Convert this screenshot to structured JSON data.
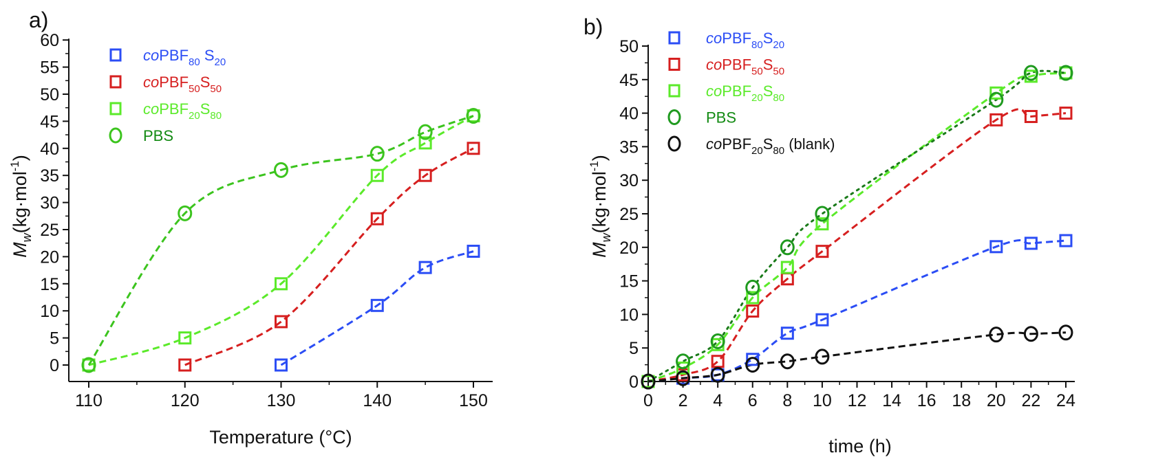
{
  "chart_data": [
    {
      "panel_label": "a)",
      "type": "scatter",
      "xlabel": "Temperature (°C)",
      "ylabel": {
        "main": "M",
        "sub": "w",
        "unit": "(kg·mol",
        "sup": "-1",
        "close": ")"
      },
      "xlim": [
        108,
        152
      ],
      "ylim": [
        0,
        60
      ],
      "xticks": [
        110,
        120,
        130,
        140,
        150
      ],
      "yticks": [
        0,
        5,
        10,
        15,
        20,
        25,
        30,
        35,
        40,
        45,
        50,
        55,
        60
      ],
      "legend_position": "top-left",
      "series": [
        {
          "name": {
            "italic": "co",
            "main": "PBF",
            "sub1": "80",
            "main2": " S",
            "sub2": "20",
            "suffix": ""
          },
          "marker": "square",
          "color": "#2b4df5",
          "text_color": "#2b4df5",
          "fit_color": "#2b4df5",
          "fit_style": "dashed",
          "x": [
            130,
            140,
            145,
            150
          ],
          "y": [
            0,
            11,
            18,
            21
          ]
        },
        {
          "name": {
            "italic": "co",
            "main": "PBF",
            "sub1": "50",
            "main2": "S",
            "sub2": "50",
            "suffix": ""
          },
          "marker": "square",
          "color": "#d61f1f",
          "text_color": "#d61f1f",
          "fit_color": "#d61f1f",
          "fit_style": "dashed",
          "x": [
            120,
            130,
            140,
            145,
            150
          ],
          "y": [
            0,
            8,
            27,
            35,
            40
          ]
        },
        {
          "name": {
            "italic": "co",
            "main": "PBF",
            "sub1": "20",
            "main2": "S",
            "sub2": "80",
            "suffix": ""
          },
          "marker": "square",
          "color": "#5bea2a",
          "text_color": "#5bea2a",
          "fit_color": "#5bea2a",
          "fit_style": "dashed",
          "x": [
            110,
            120,
            130,
            140,
            145,
            150
          ],
          "y": [
            0,
            5,
            15,
            35,
            41,
            46
          ]
        },
        {
          "name": {
            "italic": "",
            "main": "PBS",
            "sub1": "",
            "main2": "",
            "sub2": "",
            "suffix": ""
          },
          "marker": "circle",
          "color": "#3cc41e",
          "text_color": "#128a12",
          "fit_color": "#3cc41e",
          "fit_style": "dashed",
          "x": [
            110,
            120,
            130,
            140,
            145,
            150
          ],
          "y": [
            0,
            28,
            36,
            39,
            43,
            46
          ]
        }
      ]
    },
    {
      "panel_label": "b)",
      "type": "scatter",
      "xlabel": "time (h)",
      "ylabel": {
        "main": "M",
        "sub": "w",
        "unit": "(kg·mol",
        "sup": "-1",
        "close": ")"
      },
      "xlim": [
        0,
        24.5
      ],
      "ylim": [
        0,
        50
      ],
      "xticks": [
        0,
        2,
        4,
        6,
        8,
        10,
        12,
        14,
        16,
        18,
        20,
        22,
        24
      ],
      "yticks": [
        0,
        5,
        10,
        15,
        20,
        25,
        30,
        35,
        40,
        45,
        50
      ],
      "legend_position": "top-left",
      "series": [
        {
          "name": {
            "italic": "co",
            "main": "PBF",
            "sub1": "80",
            "main2": "S",
            "sub2": "20",
            "suffix": ""
          },
          "marker": "square",
          "color": "#2b4df5",
          "text_color": "#2b4df5",
          "fit_color": "#2b4df5",
          "fit_style": "dashed",
          "x": [
            0,
            2,
            4,
            6,
            8,
            10,
            20,
            22,
            24
          ],
          "y": [
            0,
            0.5,
            1,
            3.3,
            7.2,
            9.2,
            20.1,
            20.6,
            21
          ]
        },
        {
          "name": {
            "italic": "co",
            "main": "PBF",
            "sub1": "50",
            "main2": "S",
            "sub2": "50",
            "suffix": ""
          },
          "marker": "square",
          "color": "#d61f1f",
          "text_color": "#d61f1f",
          "fit_color": "#d61f1f",
          "fit_style": "dashed",
          "x": [
            0,
            2,
            4,
            6,
            8,
            10,
            20,
            22,
            24
          ],
          "y": [
            0,
            1,
            3,
            10.5,
            15.3,
            19.4,
            39,
            39.5,
            40
          ]
        },
        {
          "name": {
            "italic": "co",
            "main": "PBF",
            "sub1": "20",
            "main2": "S",
            "sub2": "80",
            "suffix": ""
          },
          "marker": "square",
          "color": "#5bea2a",
          "text_color": "#5bea2a",
          "fit_color": "#5bea2a",
          "fit_style": "dashed",
          "x": [
            0,
            2,
            4,
            6,
            8,
            10,
            20,
            22,
            24
          ],
          "y": [
            0,
            2,
            5.5,
            12.5,
            17,
            23.5,
            43,
            45.5,
            46
          ]
        },
        {
          "name": {
            "italic": "",
            "main": "PBS",
            "sub1": "",
            "main2": "",
            "sub2": "",
            "suffix": ""
          },
          "marker": "circle",
          "color": "#1f9a1f",
          "text_color": "#128a12",
          "fit_color": "#1a7a1a",
          "fit_style": "dotted",
          "x": [
            0,
            2,
            4,
            6,
            8,
            10,
            20,
            22,
            24
          ],
          "y": [
            0,
            3,
            6,
            14,
            20,
            25,
            42,
            46,
            46
          ]
        },
        {
          "name": {
            "italic": "co",
            "main": "PBF",
            "sub1": "20",
            "main2": "S",
            "sub2": "80",
            "suffix": " (blank)"
          },
          "marker": "circle",
          "color": "#111111",
          "text_color": "#111111",
          "fit_color": "#111111",
          "fit_style": "dashed",
          "x": [
            0,
            2,
            4,
            6,
            8,
            10,
            20,
            22,
            24
          ],
          "y": [
            0,
            0.5,
            1,
            2.5,
            3,
            3.7,
            7,
            7.1,
            7.3
          ]
        }
      ]
    }
  ]
}
